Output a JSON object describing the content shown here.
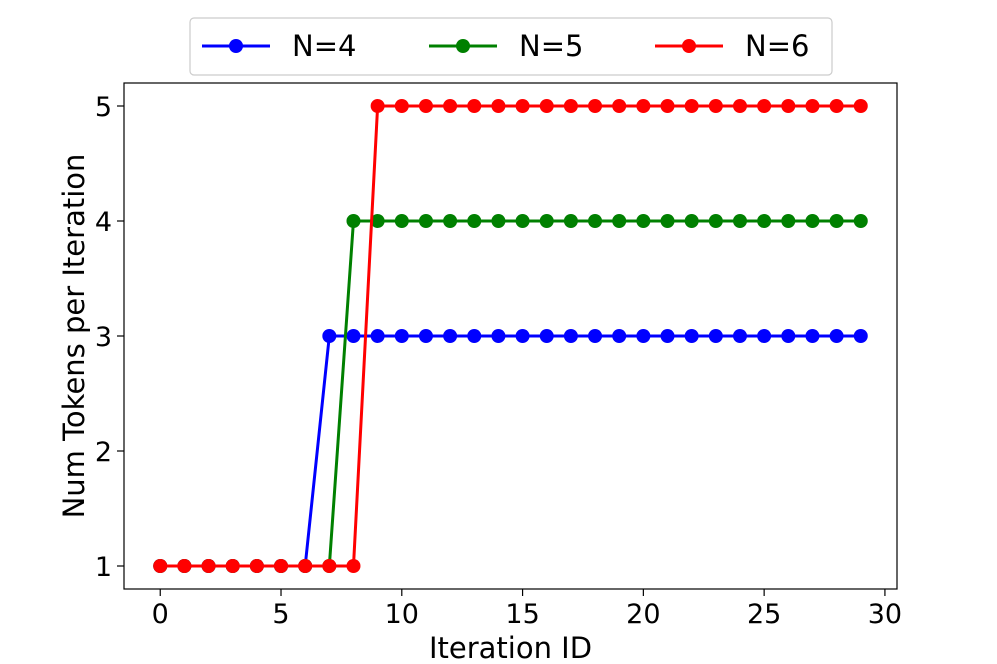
{
  "chart_data": {
    "type": "line",
    "xlabel": "Iteration ID",
    "ylabel": "Num Tokens per Iteration",
    "xlim": [
      -1.5,
      30.5
    ],
    "ylim": [
      0.8,
      5.2
    ],
    "xticks": [
      0,
      5,
      10,
      15,
      20,
      25,
      30
    ],
    "yticks": [
      1,
      2,
      3,
      4,
      5
    ],
    "grid": false,
    "legend_position": "top-center",
    "x": [
      0,
      1,
      2,
      3,
      4,
      5,
      6,
      7,
      8,
      9,
      10,
      11,
      12,
      13,
      14,
      15,
      16,
      17,
      18,
      19,
      20,
      21,
      22,
      23,
      24,
      25,
      26,
      27,
      28,
      29
    ],
    "series": [
      {
        "name": "N=4",
        "color": "#0000ff",
        "values": [
          1,
          1,
          1,
          1,
          1,
          1,
          1,
          3,
          3,
          3,
          3,
          3,
          3,
          3,
          3,
          3,
          3,
          3,
          3,
          3,
          3,
          3,
          3,
          3,
          3,
          3,
          3,
          3,
          3,
          3
        ]
      },
      {
        "name": "N=5",
        "color": "#008000",
        "values": [
          1,
          1,
          1,
          1,
          1,
          1,
          1,
          1,
          4,
          4,
          4,
          4,
          4,
          4,
          4,
          4,
          4,
          4,
          4,
          4,
          4,
          4,
          4,
          4,
          4,
          4,
          4,
          4,
          4,
          4
        ]
      },
      {
        "name": "N=6",
        "color": "#ff0000",
        "values": [
          1,
          1,
          1,
          1,
          1,
          1,
          1,
          1,
          1,
          5,
          5,
          5,
          5,
          5,
          5,
          5,
          5,
          5,
          5,
          5,
          5,
          5,
          5,
          5,
          5,
          5,
          5,
          5,
          5,
          5
        ]
      }
    ]
  }
}
